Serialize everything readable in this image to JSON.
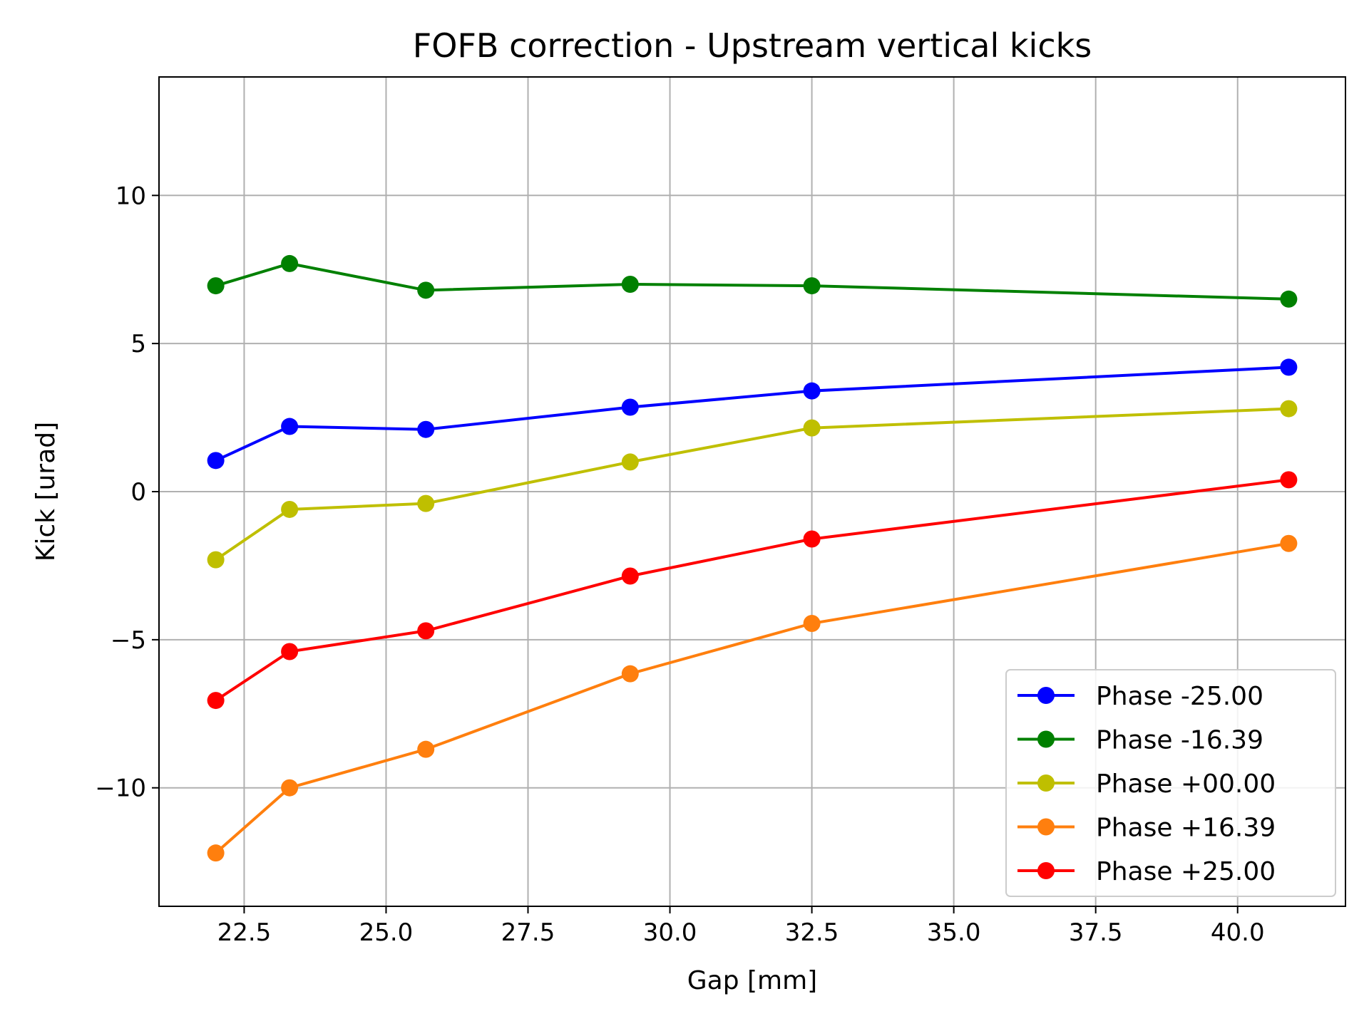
{
  "chart_data": {
    "type": "line",
    "title": "FOFB correction - Upstream vertical kicks",
    "xlabel": "Gap [mm]",
    "ylabel": "Kick [urad]",
    "xlim": [
      21.0,
      41.9
    ],
    "ylim": [
      -14.0,
      14.0
    ],
    "xticks": [
      22.5,
      25.0,
      27.5,
      30.0,
      32.5,
      35.0,
      37.5,
      40.0
    ],
    "xtick_labels": [
      "22.5",
      "25.0",
      "27.5",
      "30.0",
      "32.5",
      "35.0",
      "37.5",
      "40.0"
    ],
    "yticks": [
      -10,
      -5,
      0,
      5,
      10
    ],
    "ytick_labels": [
      "−10",
      "−5",
      "0",
      "5",
      "10"
    ],
    "grid": true,
    "legend_position": "lower right",
    "x": [
      22.0,
      23.3,
      25.7,
      29.3,
      32.5,
      40.9
    ],
    "series": [
      {
        "name": "Phase -25.00",
        "color": "#0000ff",
        "values": [
          1.05,
          2.2,
          2.1,
          2.85,
          3.4,
          4.2
        ]
      },
      {
        "name": "Phase -16.39",
        "color": "#008000",
        "values": [
          6.95,
          7.7,
          6.8,
          7.0,
          6.95,
          6.5
        ]
      },
      {
        "name": "Phase +00.00",
        "color": "#bfbf00",
        "values": [
          -2.3,
          -0.6,
          -0.4,
          1.0,
          2.15,
          2.8
        ]
      },
      {
        "name": "Phase +16.39",
        "color": "#ff7f0e",
        "values": [
          -12.2,
          -10.0,
          -8.7,
          -6.15,
          -4.45,
          -1.75
        ]
      },
      {
        "name": "Phase +25.00",
        "color": "#ff0000",
        "values": [
          -7.05,
          -5.4,
          -4.7,
          -2.85,
          -1.6,
          0.4
        ]
      }
    ]
  }
}
